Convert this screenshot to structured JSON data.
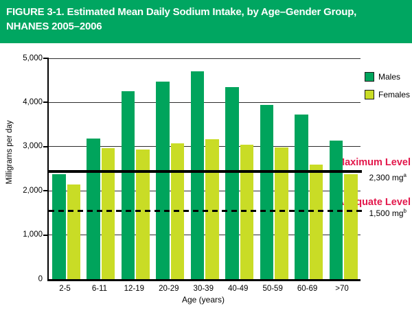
{
  "header": {
    "line1": "FIGURE 3-1. Estimated Mean Daily Sodium Intake, by Age–Gender Group,",
    "line2": "NHANES 2005–2006"
  },
  "colors": {
    "banner_green": "#00A661",
    "males_green": "#00A45C",
    "females_yellow_green": "#C9DC26",
    "red_label": "#E3174B",
    "gridline": "#2b2b2b"
  },
  "chart_data": {
    "type": "bar",
    "title": "FIGURE 3-1. Estimated Mean Daily Sodium Intake, by Age–Gender Group, NHANES 2005–2006",
    "categories": [
      "2-5",
      "6-11",
      "12-19",
      "20-29",
      "30-39",
      "40-49",
      "50-59",
      "60-69",
      ">70"
    ],
    "series": [
      {
        "name": "Males",
        "color": "#00A45C",
        "values": [
          2370,
          3180,
          4260,
          4470,
          4700,
          4350,
          3950,
          3730,
          3130
        ]
      },
      {
        "name": "Females",
        "color": "#C9DC26",
        "values": [
          2150,
          2960,
          2940,
          3080,
          3170,
          3050,
          2980,
          2600,
          2380
        ]
      }
    ],
    "xlabel": "Age (years)",
    "ylabel": "Milligrams per day",
    "ylim": [
      0,
      5000
    ],
    "yticks": [
      {
        "label": "0",
        "value": 0
      },
      {
        "label": "1,000",
        "value": 1000
      },
      {
        "label": "2,000",
        "value": 2000
      },
      {
        "label": "3,000",
        "value": 3000
      },
      {
        "label": "4,000",
        "value": 4000
      },
      {
        "label": "5,000",
        "value": 5000
      }
    ],
    "grid": true,
    "legend_position": "top-right",
    "reference_lines": [
      {
        "label": "Maximum Level",
        "value": 2300,
        "value_label": "2,300 mg",
        "superscript": "a",
        "style": "solid"
      },
      {
        "label": "Adequate Level",
        "value": 1500,
        "value_label": "1,500 mg",
        "superscript": "b",
        "style": "dashed"
      }
    ]
  }
}
